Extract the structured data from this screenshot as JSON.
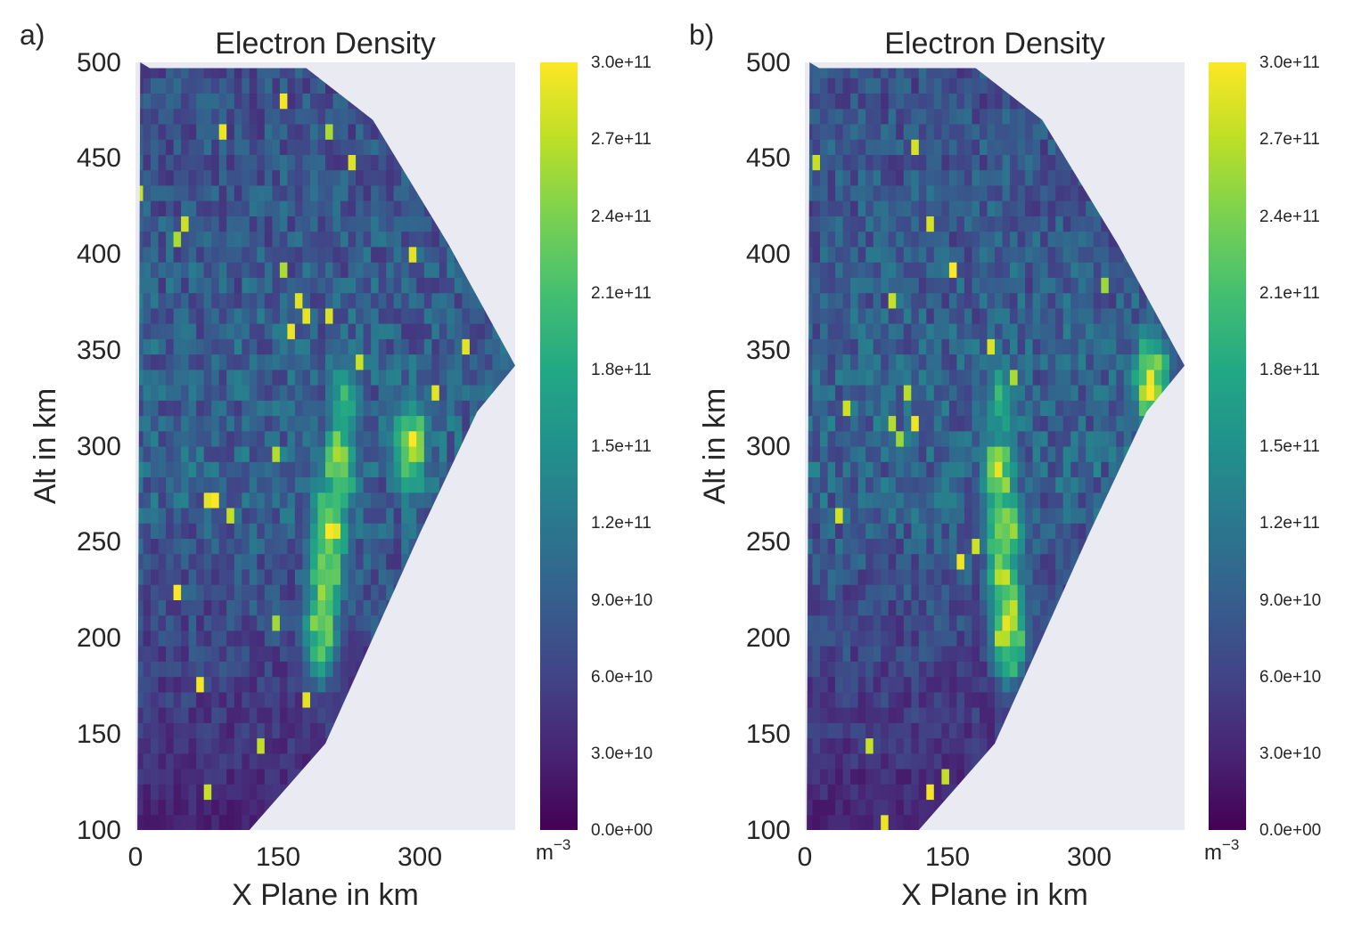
{
  "chart_data": [
    {
      "panel_label": "a)",
      "type": "heatmap",
      "title": "Electron Density",
      "xlabel": "X Plane in km",
      "ylabel": "Alt in km",
      "x_ticks": [
        "0",
        "150",
        "300"
      ],
      "y_ticks": [
        "100",
        "150",
        "200",
        "250",
        "300",
        "350",
        "400",
        "450",
        "500"
      ],
      "xlim": [
        0,
        400
      ],
      "ylim": [
        100,
        500
      ],
      "colorbar": {
        "unit": "m",
        "unit_exponent": "−3",
        "ticks": [
          "0.0e+00",
          "3.0e+10",
          "6.0e+10",
          "9.0e+10",
          "1.2e+11",
          "1.5e+11",
          "1.8e+11",
          "2.1e+11",
          "2.4e+11",
          "2.7e+11",
          "3.0e+11"
        ],
        "range": [
          0,
          300000000000
        ],
        "colormap": "viridis"
      },
      "background_color": "#eaeaf2",
      "high_density_ridge": [
        {
          "x": 195,
          "alt": 205,
          "ne": 260000000000.0
        },
        {
          "x": 200,
          "alt": 235,
          "ne": 290000000000.0
        },
        {
          "x": 205,
          "alt": 260,
          "ne": 300000000000.0
        },
        {
          "x": 215,
          "alt": 290,
          "ne": 270000000000.0
        },
        {
          "x": 220,
          "alt": 320,
          "ne": 230000000000.0
        },
        {
          "x": 290,
          "alt": 300,
          "ne": 280000000000.0
        }
      ]
    },
    {
      "panel_label": "b)",
      "type": "heatmap",
      "title": "Electron Density",
      "xlabel": "X Plane in km",
      "ylabel": "Alt in km",
      "x_ticks": [
        "0",
        "150",
        "300"
      ],
      "y_ticks": [
        "100",
        "150",
        "200",
        "250",
        "300",
        "350",
        "400",
        "450",
        "500"
      ],
      "xlim": [
        0,
        400
      ],
      "ylim": [
        100,
        500
      ],
      "colorbar": {
        "unit": "m",
        "unit_exponent": "−3",
        "ticks": [
          "0.0e+00",
          "3.0e+10",
          "6.0e+10",
          "9.0e+10",
          "1.2e+11",
          "1.5e+11",
          "1.8e+11",
          "2.1e+11",
          "2.4e+11",
          "2.7e+11",
          "3.0e+11"
        ],
        "range": [
          0,
          300000000000
        ],
        "colormap": "viridis"
      },
      "background_color": "#eaeaf2",
      "high_density_ridge": [
        {
          "x": 215,
          "alt": 205,
          "ne": 300000000000.0
        },
        {
          "x": 210,
          "alt": 230,
          "ne": 270000000000.0
        },
        {
          "x": 210,
          "alt": 255,
          "ne": 290000000000.0
        },
        {
          "x": 205,
          "alt": 285,
          "ne": 280000000000.0
        },
        {
          "x": 205,
          "alt": 320,
          "ne": 200000000000.0
        },
        {
          "x": 365,
          "alt": 335,
          "ne": 300000000000.0
        }
      ]
    }
  ]
}
